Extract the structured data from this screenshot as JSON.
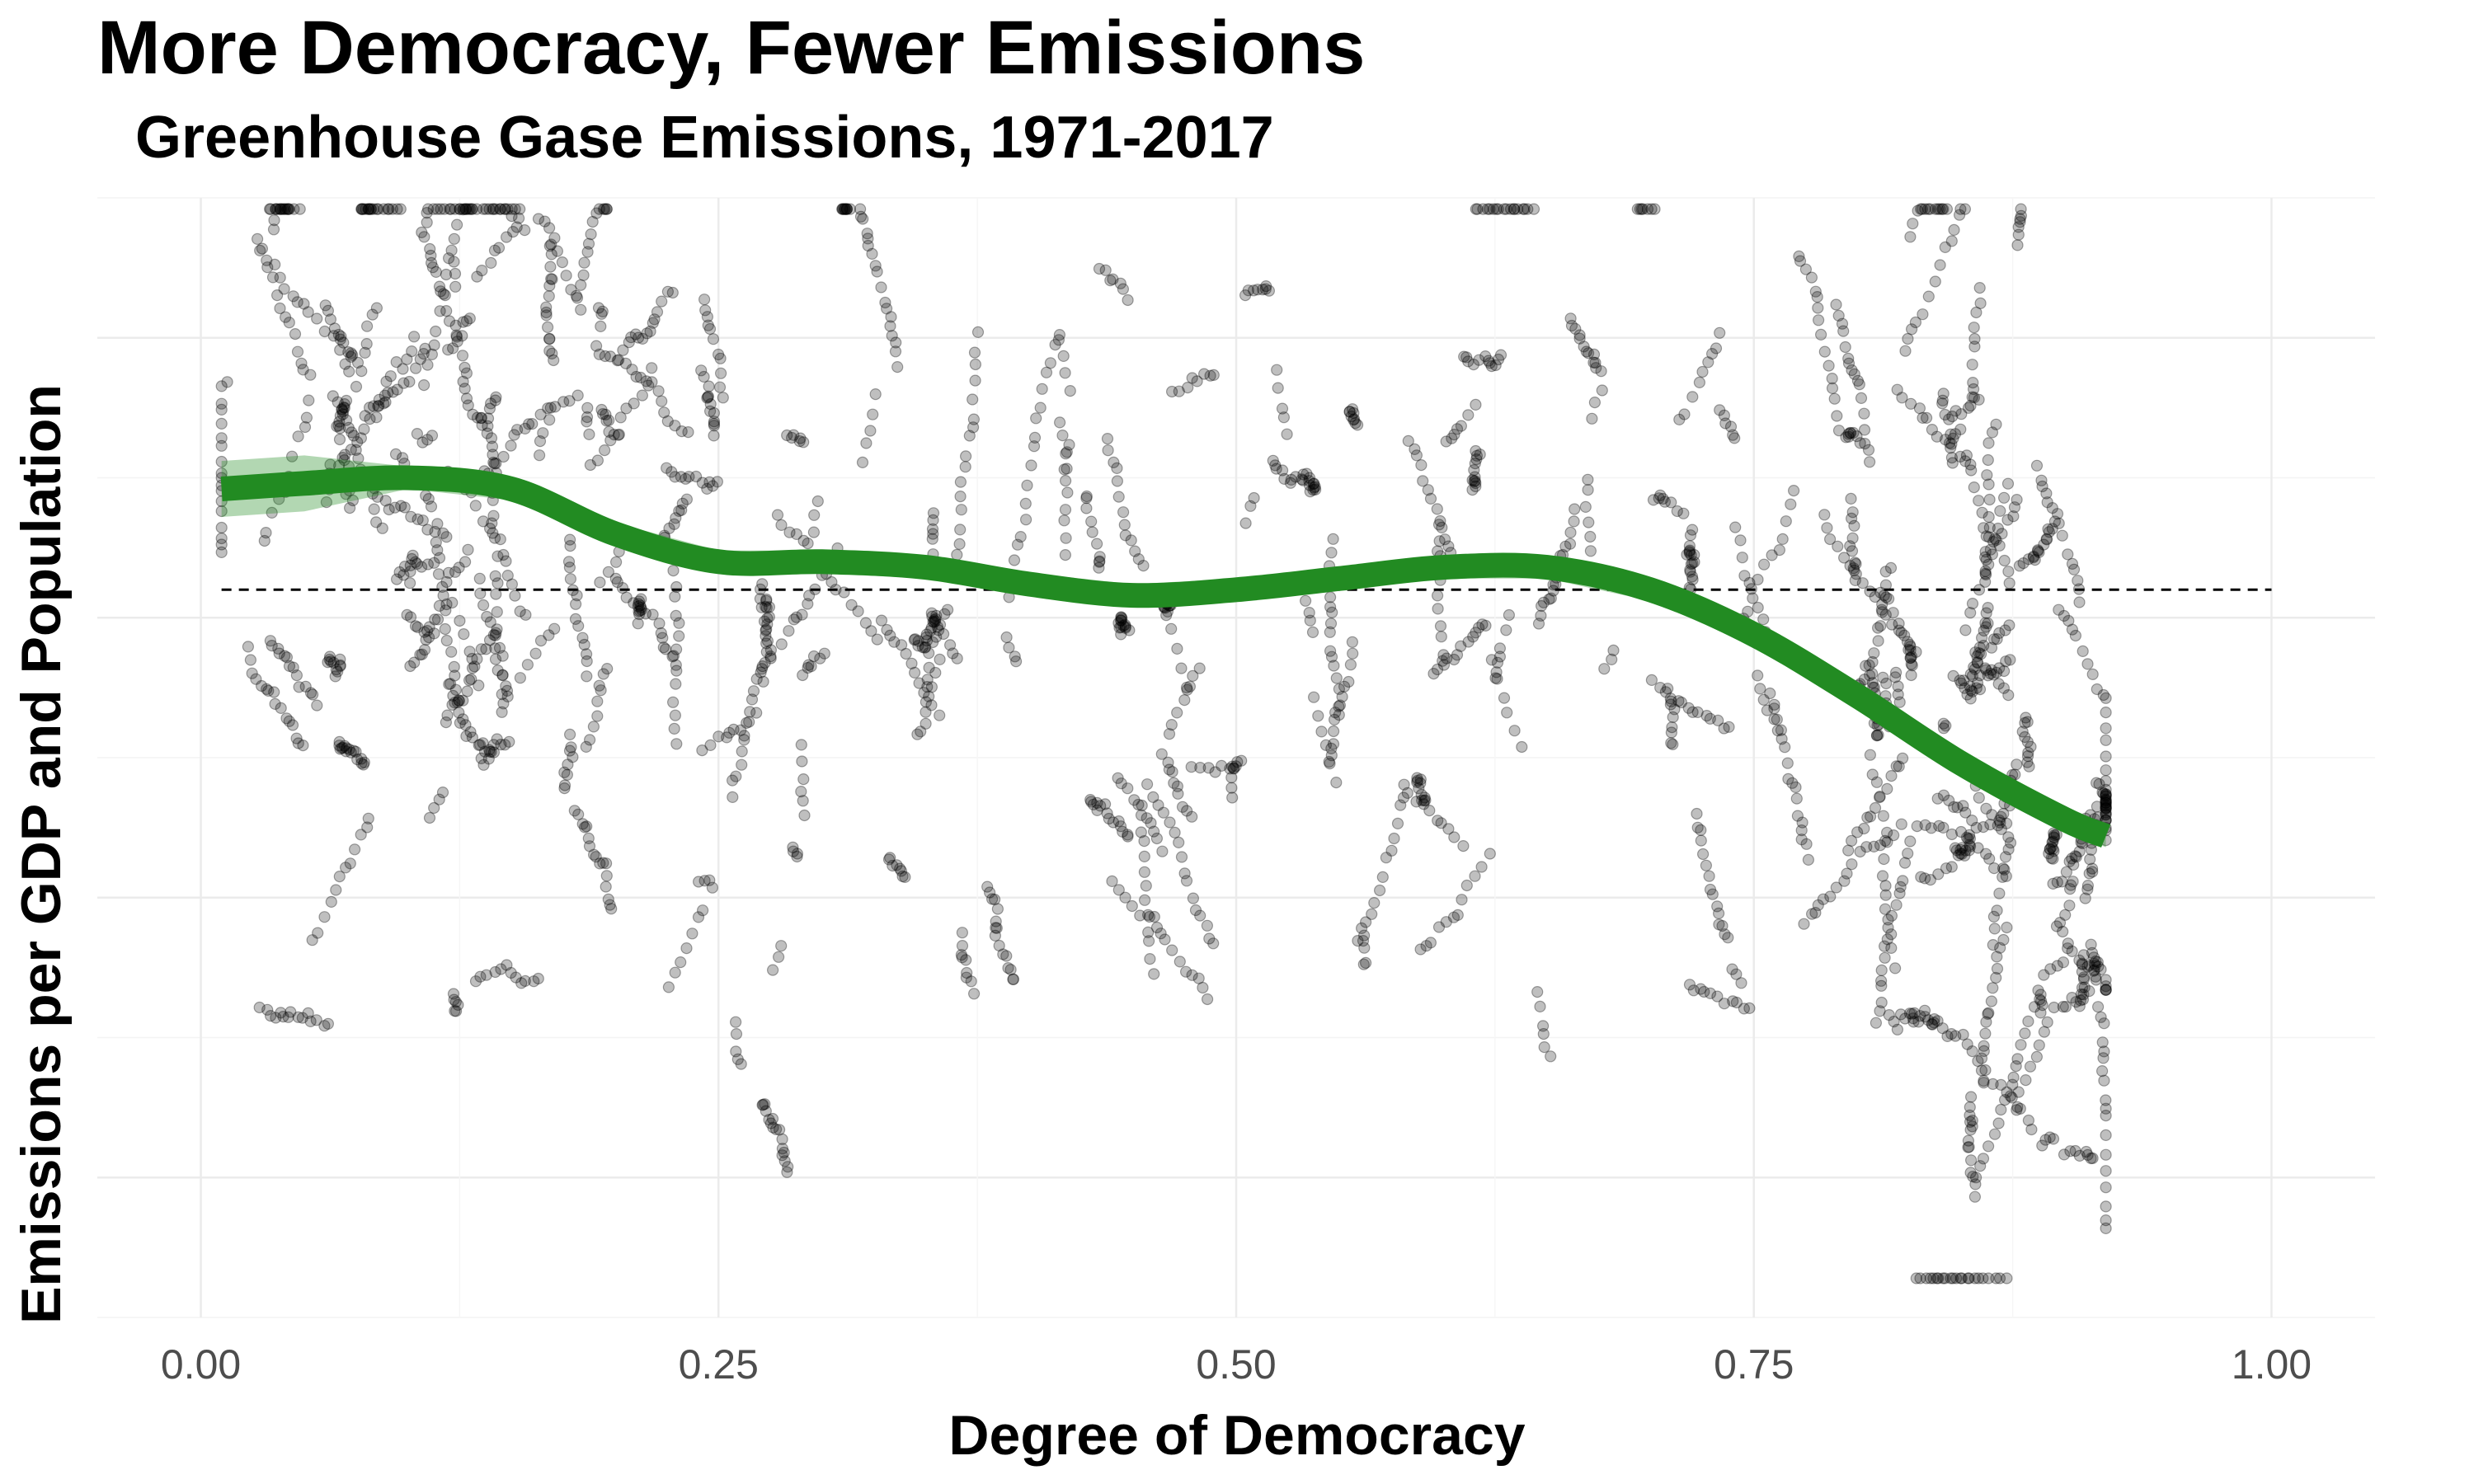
{
  "title": "More Democracy, Fewer Emissions",
  "subtitle": "Greenhouse Gase Emissions, 1971-2017",
  "colors": {
    "points": "#000000",
    "trend": "#228B22",
    "grid": "#ebebeb",
    "reference_line": "#000000"
  },
  "chart_data": {
    "type": "scatter",
    "title": "More Democracy, Fewer Emissions",
    "subtitle": "Greenhouse Gase Emissions, 1971-2017",
    "xlabel": "Degree of Democracy",
    "ylabel": "Emissions per GDP and Population",
    "xlim": [
      -0.05,
      1.05
    ],
    "x_ticks": [
      "0.00",
      "0.25",
      "0.50",
      "0.75",
      "1.00"
    ],
    "x_tick_values": [
      0.0,
      0.25,
      0.5,
      0.75,
      1.0
    ],
    "y_ticks_labeled": false,
    "y_gridlines": 5,
    "grid": true,
    "reference_line": {
      "style": "dashed",
      "y_level": "mean"
    },
    "trend": {
      "name": "smoothed fit",
      "x": [
        0.01,
        0.05,
        0.1,
        0.15,
        0.2,
        0.25,
        0.3,
        0.35,
        0.4,
        0.45,
        0.5,
        0.55,
        0.6,
        0.65,
        0.7,
        0.75,
        0.8,
        0.85,
        0.9,
        0.92
      ],
      "y": [
        0.48,
        0.49,
        0.5,
        0.48,
        0.4,
        0.35,
        0.35,
        0.34,
        0.31,
        0.29,
        0.3,
        0.32,
        0.34,
        0.34,
        0.3,
        0.22,
        0.11,
        -0.01,
        -0.11,
        -0.14
      ]
    },
    "points_summary": {
      "approx_count": 2600,
      "x_range": [
        0.01,
        0.92
      ],
      "alpha": 0.25
    }
  }
}
